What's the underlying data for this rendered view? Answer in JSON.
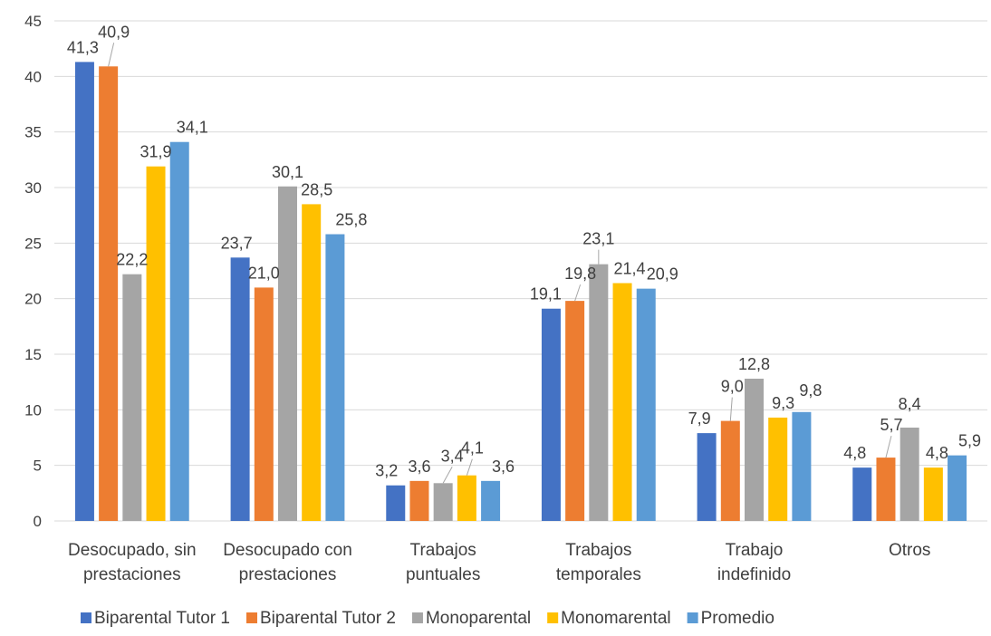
{
  "chart_data": {
    "type": "bar",
    "title": "",
    "xlabel": "",
    "ylabel": "",
    "ylim": [
      0,
      45
    ],
    "yticks": [
      0,
      5,
      10,
      15,
      20,
      25,
      30,
      35,
      40,
      45
    ],
    "grid": true,
    "legend_position": "bottom",
    "categories": [
      [
        "Desocupado, sin",
        "prestaciones"
      ],
      [
        "Desocupado con",
        "prestaciones"
      ],
      [
        "Trabajos",
        "puntuales"
      ],
      [
        "Trabajos",
        "temporales"
      ],
      [
        "Trabajo",
        "indefinido"
      ],
      [
        "Otros"
      ]
    ],
    "series": [
      {
        "name": "Biparental Tutor 1",
        "color": "#4472c4",
        "values": [
          41.3,
          23.7,
          3.2,
          19.1,
          7.9,
          4.8
        ],
        "labels": [
          "41,3",
          "23,7",
          "3,2",
          "19,1",
          "7,9",
          "4,8"
        ]
      },
      {
        "name": "Biparental Tutor 2",
        "color": "#ed7d31",
        "values": [
          40.9,
          21.0,
          3.6,
          19.8,
          9.0,
          5.7
        ],
        "labels": [
          "40,9",
          "21,0",
          "3,6",
          "19,8",
          "9,0",
          "5,7"
        ]
      },
      {
        "name": "Monoparental",
        "color": "#a5a5a5",
        "values": [
          22.2,
          30.1,
          3.4,
          23.1,
          12.8,
          8.4
        ],
        "labels": [
          "22,2",
          "30,1",
          "3,4",
          "23,1",
          "12,8",
          "8,4"
        ]
      },
      {
        "name": "Monomarental",
        "color": "#ffc000",
        "values": [
          31.9,
          28.5,
          4.1,
          21.4,
          9.3,
          4.8
        ],
        "labels": [
          "31,9",
          "28,5",
          "4,1",
          "21,4",
          "9,3",
          "4,8"
        ]
      },
      {
        "name": "Promedio",
        "color": "#5b9bd5",
        "values": [
          34.1,
          25.8,
          3.6,
          20.9,
          9.8,
          5.9
        ],
        "labels": [
          "34,1",
          "25,8",
          "3,6",
          "20,9",
          "9,8",
          "5,9"
        ]
      }
    ]
  }
}
